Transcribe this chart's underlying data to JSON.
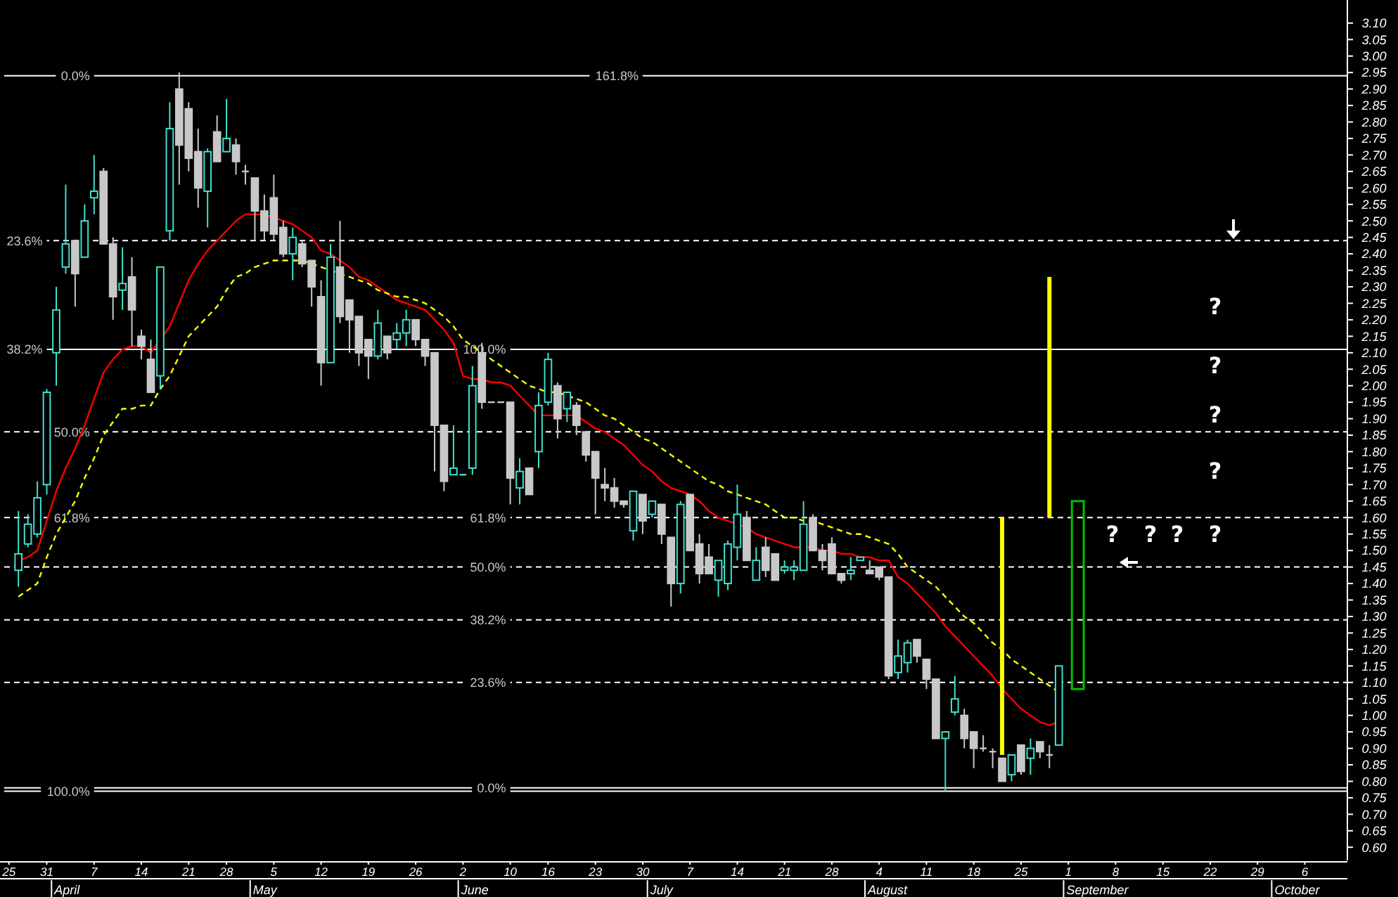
{
  "chart_data": {
    "type": "candlestick",
    "categories": [
      "25",
      null,
      null,
      null,
      "31",
      null,
      null,
      null,
      null,
      "7",
      null,
      null,
      null,
      null,
      "14",
      null,
      null,
      null,
      null,
      "21",
      null,
      null,
      null,
      "28",
      null,
      null,
      null,
      null,
      "5",
      null,
      null,
      null,
      null,
      "12",
      null,
      null,
      null,
      null,
      "19",
      null,
      null,
      null,
      null,
      "26",
      null,
      null,
      null,
      null,
      "2",
      null,
      null,
      null,
      null,
      "10",
      null,
      null,
      null,
      "16",
      null,
      null,
      null,
      null,
      "23",
      null,
      null,
      null,
      null,
      "30",
      null,
      null,
      null,
      null,
      "7",
      null,
      null,
      null,
      null,
      "14",
      null,
      null,
      null,
      null,
      "21",
      null,
      null,
      null,
      null,
      "28",
      null,
      null,
      null,
      null,
      "4",
      null,
      null,
      null,
      null,
      "11",
      null,
      null,
      null,
      null,
      "18",
      null,
      null,
      null,
      null,
      "25",
      null,
      null,
      null,
      null,
      "1",
      null,
      null,
      null,
      null,
      "8",
      null,
      null,
      null,
      null,
      "15",
      null,
      null,
      null,
      null,
      "22",
      null,
      null,
      null,
      null,
      "29",
      null,
      null,
      null,
      null,
      "6",
      null,
      null,
      null,
      null
    ],
    "ohlc": [
      null,
      [
        1.44,
        1.62,
        1.39,
        1.49
      ],
      [
        1.52,
        1.61,
        1.51,
        1.58
      ],
      [
        1.55,
        1.71,
        1.54,
        1.66
      ],
      [
        1.7,
        1.99,
        1.67,
        1.98
      ],
      [
        2.1,
        2.3,
        2.0,
        2.23
      ],
      [
        2.36,
        2.61,
        2.34,
        2.43
      ],
      [
        2.44,
        2.44,
        2.24,
        2.34
      ],
      [
        2.39,
        2.55,
        2.39,
        2.5
      ],
      [
        2.57,
        2.7,
        2.52,
        2.59
      ],
      [
        2.65,
        2.66,
        2.43,
        2.43
      ],
      [
        2.43,
        2.45,
        2.2,
        2.27
      ],
      [
        2.29,
        2.42,
        2.23,
        2.31
      ],
      [
        2.33,
        2.39,
        2.12,
        2.23
      ],
      [
        2.15,
        2.17,
        2.08,
        2.12
      ],
      [
        2.08,
        2.14,
        1.98,
        1.98
      ],
      [
        2.03,
        2.36,
        1.99,
        2.36
      ],
      [
        2.47,
        2.86,
        2.44,
        2.78
      ],
      [
        2.9,
        2.95,
        2.61,
        2.73
      ],
      [
        2.84,
        2.86,
        2.65,
        2.69
      ],
      [
        2.71,
        2.78,
        2.54,
        2.6
      ],
      [
        2.59,
        2.72,
        2.48,
        2.71
      ],
      [
        2.77,
        2.82,
        2.68,
        2.68
      ],
      [
        2.71,
        2.87,
        2.71,
        2.75
      ],
      [
        2.73,
        2.75,
        2.64,
        2.68
      ],
      [
        2.65,
        2.67,
        2.61,
        2.65
      ],
      [
        2.63,
        2.63,
        2.44,
        2.53
      ],
      [
        2.53,
        2.58,
        2.44,
        2.47
      ],
      [
        2.57,
        2.64,
        2.44,
        2.46
      ],
      [
        2.48,
        2.5,
        2.39,
        2.4
      ],
      [
        2.4,
        2.48,
        2.32,
        2.45
      ],
      [
        2.43,
        2.44,
        2.36,
        2.37
      ],
      [
        2.38,
        2.38,
        2.24,
        2.3
      ],
      [
        2.27,
        2.32,
        2.0,
        2.07
      ],
      [
        2.07,
        2.43,
        2.07,
        2.39
      ],
      [
        2.36,
        2.5,
        2.19,
        2.21
      ],
      [
        2.26,
        2.26,
        2.1,
        2.2
      ],
      [
        2.21,
        2.21,
        2.06,
        2.1
      ],
      [
        2.14,
        2.14,
        2.02,
        2.09
      ],
      [
        2.09,
        2.23,
        2.08,
        2.19
      ],
      [
        2.15,
        2.15,
        2.08,
        2.1
      ],
      [
        2.14,
        2.19,
        2.11,
        2.16
      ],
      [
        2.16,
        2.23,
        2.12,
        2.2
      ],
      [
        2.2,
        2.2,
        2.12,
        2.14
      ],
      [
        2.14,
        2.14,
        2.06,
        2.09
      ],
      [
        2.1,
        2.1,
        1.74,
        1.88
      ],
      [
        1.88,
        1.88,
        1.68,
        1.71
      ],
      [
        1.73,
        1.88,
        1.73,
        1.75
      ],
      [
        1.73,
        1.73,
        1.73,
        1.73
      ],
      [
        1.75,
        2.06,
        1.73,
        2.0
      ],
      [
        2.1,
        2.13,
        1.93,
        1.95
      ],
      [
        1.95,
        1.95,
        1.95,
        1.95
      ],
      [
        1.95,
        1.95,
        1.95,
        1.95
      ],
      [
        1.95,
        1.95,
        1.64,
        1.72
      ],
      [
        1.69,
        1.78,
        1.64,
        1.74
      ],
      [
        1.75,
        1.75,
        1.67,
        1.67
      ],
      [
        1.8,
        1.98,
        1.75,
        1.94
      ],
      [
        1.95,
        2.1,
        1.94,
        2.08
      ],
      [
        2.0,
        2.01,
        1.84,
        1.9
      ],
      [
        1.93,
        1.98,
        1.89,
        1.98
      ],
      [
        1.94,
        1.95,
        1.85,
        1.88
      ],
      [
        1.86,
        1.86,
        1.77,
        1.79
      ],
      [
        1.8,
        1.8,
        1.61,
        1.72
      ],
      [
        1.7,
        1.75,
        1.65,
        1.69
      ],
      [
        1.69,
        1.72,
        1.63,
        1.65
      ],
      [
        1.65,
        1.65,
        1.63,
        1.64
      ],
      [
        1.56,
        1.68,
        1.53,
        1.68
      ],
      [
        1.67,
        1.67,
        1.55,
        1.59
      ],
      [
        1.61,
        1.65,
        1.6,
        1.65
      ],
      [
        1.64,
        1.64,
        1.52,
        1.55
      ],
      [
        1.54,
        1.54,
        1.33,
        1.4
      ],
      [
        1.4,
        1.65,
        1.37,
        1.64
      ],
      [
        1.67,
        1.67,
        1.5,
        1.5
      ],
      [
        1.52,
        1.55,
        1.4,
        1.43
      ],
      [
        1.48,
        1.52,
        1.43,
        1.43
      ],
      [
        1.41,
        1.47,
        1.36,
        1.47
      ],
      [
        1.4,
        1.53,
        1.38,
        1.52
      ],
      [
        1.51,
        1.7,
        1.47,
        1.61
      ],
      [
        1.6,
        1.62,
        1.47,
        1.47
      ],
      [
        1.41,
        1.51,
        1.41,
        1.47
      ],
      [
        1.51,
        1.54,
        1.42,
        1.44
      ],
      [
        1.49,
        1.49,
        1.41,
        1.41
      ],
      [
        1.44,
        1.47,
        1.43,
        1.45
      ],
      [
        1.44,
        1.47,
        1.41,
        1.45
      ],
      [
        1.44,
        1.65,
        1.44,
        1.58
      ],
      [
        1.6,
        1.61,
        1.5,
        1.5
      ],
      [
        1.5,
        1.52,
        1.44,
        1.47
      ],
      [
        1.52,
        1.54,
        1.43,
        1.43
      ],
      [
        1.43,
        1.43,
        1.4,
        1.41
      ],
      [
        1.43,
        1.48,
        1.41,
        1.44
      ],
      [
        1.47,
        1.48,
        1.47,
        1.48
      ],
      [
        1.44,
        1.47,
        1.43,
        1.43
      ],
      [
        1.45,
        1.45,
        1.41,
        1.42
      ],
      [
        1.42,
        1.42,
        1.11,
        1.12
      ],
      [
        1.13,
        1.23,
        1.11,
        1.18
      ],
      [
        1.16,
        1.23,
        1.13,
        1.22
      ],
      [
        1.23,
        1.23,
        1.16,
        1.18
      ],
      [
        1.17,
        1.17,
        1.08,
        1.11
      ],
      [
        1.11,
        1.11,
        0.93,
        0.93
      ],
      [
        0.93,
        0.95,
        0.77,
        0.95
      ],
      [
        1.01,
        1.12,
        1.0,
        1.05
      ],
      [
        1.0,
        1.02,
        0.9,
        0.93
      ],
      [
        0.95,
        0.95,
        0.84,
        0.9
      ],
      [
        0.9,
        0.94,
        0.89,
        0.9
      ],
      [
        0.89,
        0.9,
        0.84,
        0.89
      ],
      [
        0.87,
        0.87,
        0.8,
        0.8
      ],
      [
        0.82,
        0.88,
        0.8,
        0.88
      ],
      [
        0.91,
        0.91,
        0.82,
        0.83
      ],
      [
        0.87,
        0.93,
        0.82,
        0.9
      ],
      [
        0.92,
        0.92,
        0.87,
        0.89
      ],
      [
        0.88,
        0.91,
        0.84,
        0.88
      ],
      [
        0.91,
        1.15,
        0.91,
        1.15
      ],
      null,
      null,
      null,
      null,
      null,
      null,
      null,
      null,
      null,
      null,
      null,
      null,
      null,
      null,
      null,
      null,
      null,
      null,
      null,
      null,
      null,
      null,
      null,
      null,
      null,
      null,
      null,
      null,
      null,
      null
    ],
    "colors": [
      null,
      "#40e0d0",
      "#40e0d0",
      "#40e0d0",
      "#40e0d0",
      "#40e0d0",
      "#40e0d0",
      "#c8c8c8",
      "#40e0d0",
      "#40e0d0",
      "#c8c8c8",
      "#c8c8c8",
      "#40e0d0",
      "#c8c8c8",
      "#c8c8c8",
      "#c8c8c8",
      "#40e0d0",
      "#40e0d0",
      "#c8c8c8",
      "#c8c8c8",
      "#c8c8c8",
      "#40e0d0",
      "#c8c8c8",
      "#40e0d0",
      "#c8c8c8",
      "#c8c8c8",
      "#c8c8c8",
      "#c8c8c8",
      "#c8c8c8",
      "#c8c8c8",
      "#40e0d0",
      "#c8c8c8",
      "#c8c8c8",
      "#c8c8c8",
      "#40e0d0",
      "#c8c8c8",
      "#c8c8c8",
      "#c8c8c8",
      "#c8c8c8",
      "#40e0d0",
      "#c8c8c8",
      "#40e0d0",
      "#40e0d0",
      "#c8c8c8",
      "#c8c8c8",
      "#c8c8c8",
      "#c8c8c8",
      "#40e0d0",
      "#40e0d0",
      "#40e0d0",
      "#c8c8c8",
      "#c8c8c8",
      "#c8c8c8",
      "#c8c8c8",
      "#40e0d0",
      "#c8c8c8",
      "#40e0d0",
      "#40e0d0",
      "#c8c8c8",
      "#40e0d0",
      "#c8c8c8",
      "#c8c8c8",
      "#c8c8c8",
      "#c8c8c8",
      "#c8c8c8",
      "#c8c8c8",
      "#40e0d0",
      "#c8c8c8",
      "#40e0d0",
      "#c8c8c8",
      "#c8c8c8",
      "#40e0d0",
      "#c8c8c8",
      "#c8c8c8",
      "#c8c8c8",
      "#40e0d0",
      "#40e0d0",
      "#40e0d0",
      "#c8c8c8",
      "#40e0d0",
      "#c8c8c8",
      "#c8c8c8",
      "#40e0d0",
      "#40e0d0",
      "#40e0d0",
      "#c8c8c8",
      "#c8c8c8",
      "#c8c8c8",
      "#c8c8c8",
      "#40e0d0",
      "#40e0d0",
      "#c8c8c8",
      "#c8c8c8",
      "#c8c8c8",
      "#40e0d0",
      "#40e0d0",
      "#c8c8c8",
      "#c8c8c8",
      "#c8c8c8",
      "#40e0d0",
      "#40e0d0",
      "#c8c8c8",
      "#c8c8c8",
      "#c8c8c8",
      "#c8c8c8",
      "#c8c8c8",
      "#40e0d0",
      "#c8c8c8",
      "#40e0d0",
      "#c8c8c8",
      "#c8c8c8",
      "#40e0d0",
      null,
      null,
      null,
      null,
      null,
      null,
      null,
      null,
      null,
      null,
      null,
      null,
      null,
      null,
      null,
      null,
      null,
      null,
      null,
      null,
      null,
      null,
      null,
      null,
      null,
      null,
      null,
      null,
      null,
      null
    ],
    "series": [
      {
        "type": "line",
        "color": "#ff0000",
        "line_style": "solid",
        "values": [
          null,
          1.47,
          1.48,
          1.5,
          1.59,
          1.68,
          1.75,
          1.81,
          1.88,
          1.96,
          2.04,
          2.08,
          2.11,
          2.12,
          2.12,
          2.1,
          2.14,
          2.18,
          2.25,
          2.32,
          2.37,
          2.41,
          2.44,
          2.47,
          2.5,
          2.52,
          2.52,
          2.52,
          2.51,
          2.5,
          2.49,
          2.47,
          2.45,
          2.41,
          2.4,
          2.38,
          2.36,
          2.33,
          2.32,
          2.3,
          2.28,
          2.26,
          2.25,
          2.24,
          2.23,
          2.2,
          2.17,
          2.13,
          2.03,
          2.02,
          2.02,
          2.01,
          2.01,
          2.0,
          1.97,
          1.94,
          1.91,
          1.91,
          1.91,
          1.91,
          1.91,
          1.89,
          1.87,
          1.86,
          1.84,
          1.82,
          1.79,
          1.76,
          1.74,
          1.71,
          1.69,
          1.68,
          1.67,
          1.65,
          1.62,
          1.6,
          1.59,
          1.58,
          1.57,
          1.55,
          1.54,
          1.53,
          1.52,
          1.51,
          1.51,
          1.51,
          1.5,
          1.5,
          1.49,
          1.49,
          1.48,
          1.48,
          1.47,
          1.47,
          1.42,
          1.4,
          1.37,
          1.34,
          1.31,
          1.27,
          1.24,
          1.21,
          1.18,
          1.15,
          1.12,
          1.08,
          1.05,
          1.02,
          1.0,
          0.98,
          0.97,
          0.98,
          null,
          null,
          null,
          null,
          null,
          null,
          null,
          null,
          null,
          null,
          null,
          null,
          null,
          null,
          null,
          null,
          null,
          null,
          null,
          null,
          null,
          null,
          null,
          null,
          null,
          null,
          null,
          null,
          null,
          null
        ]
      },
      {
        "type": "line",
        "color": "#ffff00",
        "line_style": "dashed",
        "values": [
          null,
          1.36,
          1.38,
          1.4,
          1.48,
          1.55,
          1.6,
          1.65,
          1.72,
          1.78,
          1.85,
          1.89,
          1.93,
          1.93,
          1.94,
          1.94,
          1.99,
          2.03,
          2.09,
          2.15,
          2.18,
          2.21,
          2.24,
          2.29,
          2.33,
          2.34,
          2.36,
          2.37,
          2.38,
          2.38,
          2.38,
          2.38,
          2.37,
          2.36,
          2.35,
          2.34,
          2.33,
          2.32,
          2.31,
          2.29,
          2.28,
          2.27,
          2.27,
          2.26,
          2.25,
          2.23,
          2.21,
          2.18,
          2.14,
          2.12,
          2.1,
          2.08,
          2.06,
          2.04,
          2.02,
          2.0,
          1.99,
          1.98,
          1.98,
          1.97,
          1.96,
          1.95,
          1.93,
          1.91,
          1.9,
          1.88,
          1.86,
          1.84,
          1.83,
          1.81,
          1.79,
          1.77,
          1.75,
          1.73,
          1.71,
          1.7,
          1.68,
          1.67,
          1.66,
          1.65,
          1.64,
          1.62,
          1.6,
          1.6,
          1.59,
          1.59,
          1.58,
          1.57,
          1.56,
          1.55,
          1.55,
          1.54,
          1.53,
          1.52,
          1.49,
          1.45,
          1.43,
          1.41,
          1.39,
          1.36,
          1.33,
          1.3,
          1.28,
          1.25,
          1.22,
          1.2,
          1.17,
          1.15,
          1.13,
          1.11,
          1.09,
          1.07,
          null,
          null,
          null,
          null,
          null,
          null,
          null,
          null,
          null,
          null,
          null,
          null,
          null,
          null,
          null,
          null,
          null,
          null,
          null,
          null,
          null,
          null,
          null,
          null,
          null,
          null,
          null,
          null,
          null,
          null
        ]
      },
      {
        "type": "bar",
        "color": "#ffff00",
        "base": [
          null,
          null,
          null,
          null,
          null,
          null,
          null,
          null,
          null,
          null,
          null,
          null,
          null,
          null,
          null,
          null,
          null,
          null,
          null,
          null,
          null,
          null,
          null,
          null,
          null,
          null,
          null,
          null,
          null,
          null,
          null,
          null,
          null,
          null,
          null,
          null,
          null,
          null,
          null,
          null,
          null,
          null,
          null,
          null,
          null,
          null,
          null,
          null,
          null,
          null,
          null,
          null,
          null,
          null,
          null,
          null,
          null,
          null,
          null,
          null,
          null,
          null,
          null,
          null,
          null,
          null,
          null,
          null,
          null,
          null,
          null,
          null,
          null,
          null,
          null,
          null,
          null,
          null,
          null,
          null,
          null,
          null,
          null,
          null,
          null,
          null,
          null,
          null,
          null,
          null,
          null,
          null,
          null,
          null,
          null,
          null,
          null,
          null,
          null,
          null,
          null,
          null,
          null,
          null,
          null,
          0.88,
          null,
          null,
          null,
          null,
          1.6,
          null,
          null,
          null,
          null,
          null,
          null,
          null,
          null,
          null,
          null,
          null,
          null,
          null,
          null,
          null,
          null,
          null,
          null,
          null,
          null,
          null,
          null,
          null,
          null,
          null,
          null,
          null,
          null,
          null,
          null,
          null
        ],
        "values": [
          null,
          null,
          null,
          null,
          null,
          null,
          null,
          null,
          null,
          null,
          null,
          null,
          null,
          null,
          null,
          null,
          null,
          null,
          null,
          null,
          null,
          null,
          null,
          null,
          null,
          null,
          null,
          null,
          null,
          null,
          null,
          null,
          null,
          null,
          null,
          null,
          null,
          null,
          null,
          null,
          null,
          null,
          null,
          null,
          null,
          null,
          null,
          null,
          null,
          null,
          null,
          null,
          null,
          null,
          null,
          null,
          null,
          null,
          null,
          null,
          null,
          null,
          null,
          null,
          null,
          null,
          null,
          null,
          null,
          null,
          null,
          null,
          null,
          null,
          null,
          null,
          null,
          null,
          null,
          null,
          null,
          null,
          null,
          null,
          null,
          null,
          null,
          null,
          null,
          null,
          null,
          null,
          null,
          null,
          null,
          null,
          null,
          null,
          null,
          null,
          null,
          null,
          null,
          null,
          null,
          0.72,
          null,
          null,
          null,
          null,
          0.73,
          null,
          null,
          null,
          null,
          null,
          null,
          null,
          null,
          null,
          null,
          null,
          null,
          null,
          null,
          null,
          null,
          null,
          null,
          null,
          null,
          null,
          null,
          null,
          null,
          null,
          null,
          null,
          null,
          null,
          null,
          null
        ]
      },
      {
        "type": "bar",
        "color": "#00c000",
        "base": [
          null,
          null,
          null,
          null,
          null,
          null,
          null,
          null,
          null,
          null,
          null,
          null,
          null,
          null,
          null,
          null,
          null,
          null,
          null,
          null,
          null,
          null,
          null,
          null,
          null,
          null,
          null,
          null,
          null,
          null,
          null,
          null,
          null,
          null,
          null,
          null,
          null,
          null,
          null,
          null,
          null,
          null,
          null,
          null,
          null,
          null,
          null,
          null,
          null,
          null,
          null,
          null,
          null,
          null,
          null,
          null,
          null,
          null,
          null,
          null,
          null,
          null,
          null,
          null,
          null,
          null,
          null,
          null,
          null,
          null,
          null,
          null,
          null,
          null,
          null,
          null,
          null,
          null,
          null,
          null,
          null,
          null,
          null,
          null,
          null,
          null,
          null,
          null,
          null,
          null,
          null,
          null,
          null,
          null,
          null,
          null,
          null,
          null,
          null,
          null,
          null,
          null,
          null,
          null,
          null,
          null,
          null,
          null,
          null,
          null,
          null,
          null,
          null,
          1.08,
          null,
          null,
          null,
          null,
          null,
          null,
          null,
          null,
          null,
          null,
          null,
          null,
          null,
          null,
          null,
          null,
          null,
          null,
          null,
          null,
          null,
          null,
          null,
          null,
          null,
          null,
          null,
          null
        ],
        "values": [
          null,
          null,
          null,
          null,
          null,
          null,
          null,
          null,
          null,
          null,
          null,
          null,
          null,
          null,
          null,
          null,
          null,
          null,
          null,
          null,
          null,
          null,
          null,
          null,
          null,
          null,
          null,
          null,
          null,
          null,
          null,
          null,
          null,
          null,
          null,
          null,
          null,
          null,
          null,
          null,
          null,
          null,
          null,
          null,
          null,
          null,
          null,
          null,
          null,
          null,
          null,
          null,
          null,
          null,
          null,
          null,
          null,
          null,
          null,
          null,
          null,
          null,
          null,
          null,
          null,
          null,
          null,
          null,
          null,
          null,
          null,
          null,
          null,
          null,
          null,
          null,
          null,
          null,
          null,
          null,
          null,
          null,
          null,
          null,
          null,
          null,
          null,
          null,
          null,
          null,
          null,
          null,
          null,
          null,
          null,
          null,
          null,
          null,
          null,
          null,
          null,
          null,
          null,
          null,
          null,
          null,
          null,
          null,
          null,
          null,
          null,
          null,
          null,
          0.57,
          null,
          null,
          null,
          null,
          null,
          null,
          null,
          null,
          null,
          null,
          null,
          null,
          null,
          null,
          null,
          null,
          null,
          null,
          null,
          null,
          null,
          null,
          null,
          null,
          null,
          null,
          null,
          null
        ]
      }
    ],
    "ylim": [
      0.56,
      3.17
    ],
    "yticks": [
      {
        "value": 0.6,
        "label": "0.60"
      },
      {
        "value": 0.65,
        "label": "0.65"
      },
      {
        "value": 0.7,
        "label": "0.70"
      },
      {
        "value": 0.75,
        "label": "0.75"
      },
      {
        "value": 0.8,
        "label": "0.80"
      },
      {
        "value": 0.85,
        "label": "0.85"
      },
      {
        "value": 0.9,
        "label": "0.90"
      },
      {
        "value": 0.95,
        "label": "0.95"
      },
      {
        "value": 1.0,
        "label": "1.00"
      },
      {
        "value": 1.05,
        "label": "1.05"
      },
      {
        "value": 1.1,
        "label": "1.10"
      },
      {
        "value": 1.15,
        "label": "1.15"
      },
      {
        "value": 1.2,
        "label": "1.20"
      },
      {
        "value": 1.25,
        "label": "1.25"
      },
      {
        "value": 1.3,
        "label": "1.30"
      },
      {
        "value": 1.35,
        "label": "1.35"
      },
      {
        "value": 1.4,
        "label": "1.40"
      },
      {
        "value": 1.45,
        "label": "1.45"
      },
      {
        "value": 1.5,
        "label": "1.50"
      },
      {
        "value": 1.55,
        "label": "1.55"
      },
      {
        "value": 1.6,
        "label": "1.60"
      },
      {
        "value": 1.65,
        "label": "1.65"
      },
      {
        "value": 1.7,
        "label": "1.70"
      },
      {
        "value": 1.75,
        "label": "1.75"
      },
      {
        "value": 1.8,
        "label": "1.80"
      },
      {
        "value": 1.85,
        "label": "1.85"
      },
      {
        "value": 1.9,
        "label": "1.90"
      },
      {
        "value": 1.95,
        "label": "1.95"
      },
      {
        "value": 2.0,
        "label": "2.00"
      },
      {
        "value": 2.05,
        "label": "2.05"
      },
      {
        "value": 2.1,
        "label": "2.10"
      },
      {
        "value": 2.15,
        "label": "2.15"
      },
      {
        "value": 2.2,
        "label": "2.20"
      },
      {
        "value": 2.25,
        "label": "2.25"
      },
      {
        "value": 2.3,
        "label": "2.30"
      },
      {
        "value": 2.35,
        "label": "2.35"
      },
      {
        "value": 2.4,
        "label": "2.40"
      },
      {
        "value": 2.45,
        "label": "2.45"
      },
      {
        "value": 2.5,
        "label": "2.50"
      },
      {
        "value": 2.55,
        "label": "2.55"
      },
      {
        "value": 2.6,
        "label": "2.60"
      },
      {
        "value": 2.65,
        "label": "2.65"
      },
      {
        "value": 2.7,
        "label": "2.70"
      },
      {
        "value": 2.75,
        "label": "2.75"
      },
      {
        "value": 2.8,
        "label": "2.80"
      },
      {
        "value": 2.85,
        "label": "2.85"
      },
      {
        "value": 2.9,
        "label": "2.90"
      },
      {
        "value": 2.95,
        "label": "2.95"
      },
      {
        "value": 3.0,
        "label": "3.00"
      },
      {
        "value": 3.05,
        "label": "3.05"
      },
      {
        "value": 3.1,
        "label": "3.10"
      }
    ],
    "ref_lines": [
      {
        "axis": "y",
        "value": 2.94,
        "color": "#ffffff",
        "line_style": "solid"
      },
      {
        "axis": "y",
        "value": 2.44,
        "color": "#ffffff",
        "line_style": "dashed"
      },
      {
        "axis": "y",
        "value": 2.11,
        "color": "#ffffff",
        "line_style": "solid"
      },
      {
        "axis": "y",
        "value": 1.86,
        "color": "#ffffff",
        "line_style": "dashed"
      },
      {
        "axis": "y",
        "value": 1.6,
        "color": "#ffffff",
        "line_style": "dashed"
      },
      {
        "axis": "y",
        "value": 1.45,
        "color": "#ffffff",
        "line_style": "dashed"
      },
      {
        "axis": "y",
        "value": 1.29,
        "color": "#ffffff",
        "line_style": "dashed"
      },
      {
        "axis": "y",
        "value": 1.1,
        "color": "#ffffff",
        "line_style": "dashed"
      },
      {
        "axis": "y",
        "value": 0.78,
        "color": "#ffffff",
        "line_style": "solid"
      },
      {
        "axis": "y",
        "value": 0.77,
        "color": "#ffffff",
        "line_style": "solid"
      }
    ],
    "annotations": [
      {
        "text": "0.0%",
        "x": "7",
        "y": 2.94
      },
      {
        "text": "23.6%",
        "x": "31",
        "y": 2.44
      },
      {
        "text": "38.2%",
        "x": "31",
        "y": 2.11
      },
      {
        "text": "50.0%",
        "x": "7",
        "y": 1.86
      },
      {
        "text": "61.8%",
        "x": "7",
        "y": 1.6
      },
      {
        "text": "100.0%",
        "x": "7",
        "y": 0.77
      },
      {
        "text": "161.8%",
        "x": "30",
        "y": 2.94
      },
      {
        "text": "100.0%",
        "x": "10",
        "y": 2.11
      },
      {
        "text": "61.8%",
        "x": "10",
        "y": 1.6
      },
      {
        "text": "50.0%",
        "x": "10",
        "y": 1.45
      },
      {
        "text": "38.2%",
        "x": "10",
        "y": 1.29
      },
      {
        "text": "23.6%",
        "x": "10",
        "y": 1.1
      },
      {
        "text": "0.0%",
        "x": "10",
        "y": 0.78
      },
      "?",
      "?",
      "?",
      "?",
      "?",
      "?",
      "?",
      "?",
      "April",
      "May",
      "June",
      "July",
      "August",
      "September",
      "October"
    ]
  }
}
